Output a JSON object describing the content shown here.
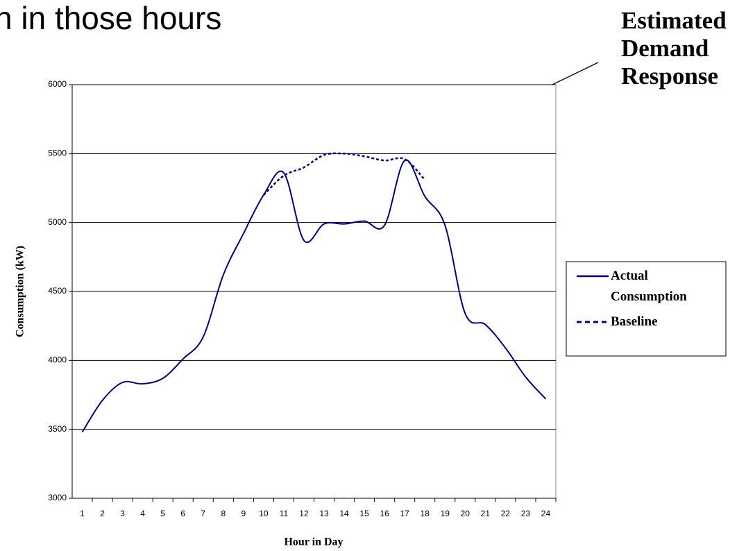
{
  "chart_data": {
    "type": "line",
    "title": "n in those hours",
    "annotation": "Estimated Demand Response",
    "x_label": "Hour in Day",
    "y_label": "Consumption (kW)",
    "categories": [
      "1",
      "2",
      "3",
      "4",
      "5",
      "6",
      "7",
      "8",
      "9",
      "10",
      "11",
      "12",
      "13",
      "14",
      "15",
      "16",
      "17",
      "18",
      "19",
      "20",
      "21",
      "22",
      "23",
      "24"
    ],
    "series": [
      {
        "name": "Actual Consumption",
        "color": "#000080",
        "dash": false,
        "values": [
          3480,
          3710,
          3840,
          3830,
          3870,
          4010,
          4170,
          4620,
          4920,
          5200,
          5360,
          4870,
          4990,
          4990,
          5010,
          4980,
          5450,
          5190,
          4980,
          4340,
          4260,
          4090,
          3880,
          3720
        ]
      },
      {
        "name": "Baseline",
        "color": "#000080",
        "dash": true,
        "values": [
          null,
          null,
          null,
          null,
          null,
          null,
          null,
          null,
          null,
          5200,
          5340,
          5400,
          5490,
          5500,
          5480,
          5450,
          5460,
          5310,
          null,
          null,
          null,
          null,
          null,
          null
        ]
      }
    ],
    "ylim": [
      3000,
      6000
    ],
    "yticks": [
      3000,
      3500,
      4000,
      4500,
      5000,
      5500,
      6000
    ],
    "grid": true
  }
}
